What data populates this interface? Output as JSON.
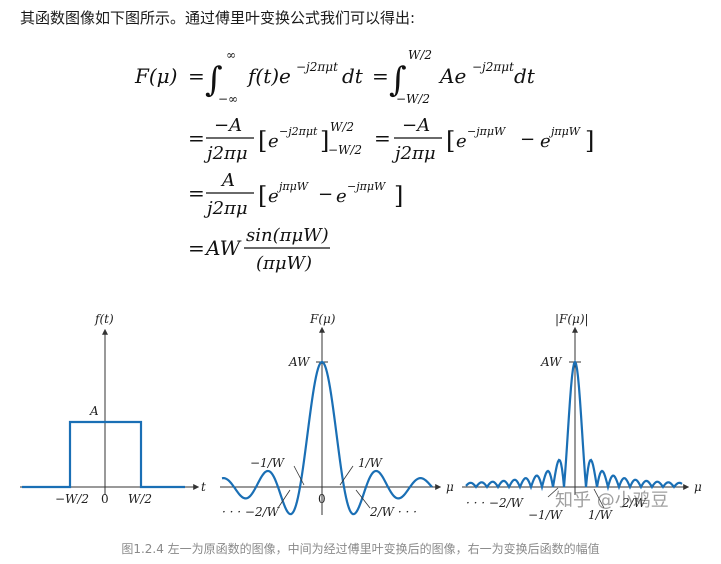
{
  "intro_text": "其函数图像如下图所示。通过傅里叶变换公式我们可以得出:",
  "formula": {
    "line1_lhs": "F(μ)",
    "inf": "∞",
    "neg_inf": "−∞",
    "integrand1": "f(t)e",
    "exp1": "−j2πμt",
    "dt": "dt",
    "upper2": "W/2",
    "lower2": "−W/2",
    "integrand2": "Ae",
    "num_negA": "−A",
    "num_A": "A",
    "den": "j2πμ",
    "bracket1_inner": "e",
    "bracket1_exp": "−j2πμt",
    "bracket1_upper": "W/2",
    "bracket1_lower": "−W/2",
    "e_neg_jpimuW": "−jπμW",
    "e_pos_jpimuW": "jπμW",
    "minus": "−",
    "e": "e",
    "AW": "AW",
    "sin_num": "sin(πμW)",
    "sin_den": "(πμW)",
    "eq": "="
  },
  "figures": {
    "left": {
      "y_label": "f(t)",
      "x_label": "t",
      "A": "A",
      "neg_w2": "−W/2",
      "zero": "0",
      "w2": "W/2"
    },
    "middle": {
      "y_label": "F(μ)",
      "x_label": "μ",
      "AW": "AW",
      "neg1w": "−1/W",
      "pos1w": "1/W",
      "neg2w": "· · · −2/W",
      "pos2w": "2/W · · ·",
      "zero": "0"
    },
    "right": {
      "y_label": "|F(μ)|",
      "x_label": "μ",
      "AW": "AW",
      "neg2w": "· · · −2/W",
      "neg1w": "−1/W",
      "pos1w": "1/W",
      "pos2w": "2/W"
    },
    "curve_color": "#1a6fb5"
  },
  "watermark": "知乎 @小鸡豆",
  "caption": "图1.2.4 左一为原函数的图像，中间为经过傅里叶变换后的图像，右一为变换后函数的幅值"
}
